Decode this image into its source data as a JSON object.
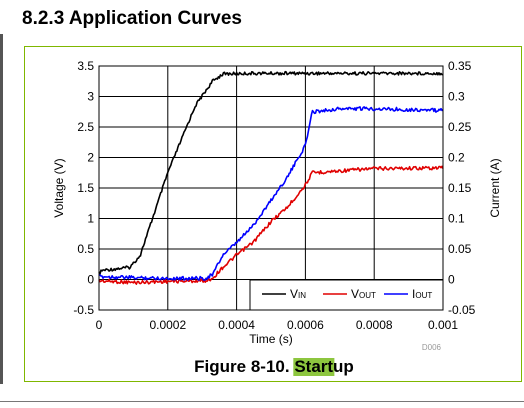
{
  "heading": "8.2.3 Application Curves",
  "figure": {
    "caption_prefix": "Figure 8-10. ",
    "caption_highlight": "Start",
    "caption_suffix": "up",
    "code": "D006",
    "highlight_color": "#8dc63f"
  },
  "chart_data": {
    "type": "line",
    "xlabel": "Time (s)",
    "ylabel_left": "Voltage (V)",
    "ylabel_right": "Current (A)",
    "xlim": [
      0,
      0.001
    ],
    "ylim_left": [
      -0.5,
      3.5
    ],
    "ylim_right": [
      -0.05,
      0.35
    ],
    "x_ticks": [
      "0",
      "0.0002",
      "0.0004",
      "0.0006",
      "0.0008",
      "0.001"
    ],
    "y_ticks_left": [
      "-0.5",
      "0",
      "0.5",
      "1",
      "1.5",
      "2",
      "2.5",
      "3",
      "3.5"
    ],
    "y_ticks_right": [
      "-0.05",
      "0",
      "0.05",
      "0.1",
      "0.15",
      "0.2",
      "0.25",
      "0.3",
      "0.35"
    ],
    "grid": true,
    "legend_position": "bottom-right",
    "series": [
      {
        "name": "VIN",
        "label_main": "V",
        "label_sub": "IN",
        "axis": "left",
        "color": "#000000",
        "x": [
          0,
          1e-05,
          9e-05,
          0.00012,
          0.0002,
          0.00028,
          0.00033,
          0.00036,
          0.00045,
          0.0006,
          0.0008,
          0.001
        ],
        "y": [
          0.1,
          0.15,
          0.2,
          0.4,
          1.75,
          2.85,
          3.25,
          3.37,
          3.38,
          3.38,
          3.38,
          3.38
        ]
      },
      {
        "name": "VOUT",
        "label_main": "V",
        "label_sub": "OUT",
        "axis": "left",
        "color": "#e00000",
        "x": [
          0,
          0.0001,
          0.0002,
          0.00031,
          0.00033,
          0.00036,
          0.0004,
          0.00045,
          0.0005,
          0.00055,
          0.0006,
          0.00062,
          0.0007,
          0.0008,
          0.001
        ],
        "y": [
          -0.02,
          -0.05,
          -0.03,
          -0.02,
          0.02,
          0.2,
          0.4,
          0.62,
          0.95,
          1.2,
          1.55,
          1.75,
          1.78,
          1.82,
          1.83
        ]
      },
      {
        "name": "IOUT",
        "label_main": "I",
        "label_sub": "OUT",
        "axis": "right",
        "color": "#0000ff",
        "x": [
          0,
          0.0001,
          0.0002,
          0.00031,
          0.00033,
          0.00036,
          0.0004,
          0.00045,
          0.0005,
          0.00055,
          0.0006,
          0.00062,
          0.0007,
          0.0008,
          0.001
        ],
        "y": [
          0.005,
          0.003,
          0.002,
          0.002,
          0.008,
          0.04,
          0.06,
          0.09,
          0.13,
          0.17,
          0.22,
          0.275,
          0.28,
          0.28,
          0.277
        ]
      }
    ]
  }
}
